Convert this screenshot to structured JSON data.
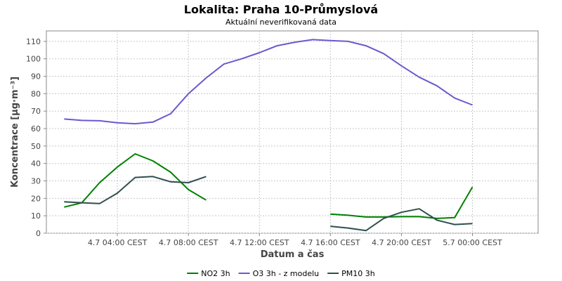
{
  "chart_data": {
    "type": "line",
    "title": "Lokalita: Praha 10-Průmyslová",
    "subtitle": "Aktuální neverifikovaná data",
    "xlabel": "Datum a čas",
    "ylabel": "Koncentrace [µg·m⁻³]",
    "ylim": [
      0,
      116
    ],
    "yticks": [
      0,
      10,
      20,
      30,
      40,
      50,
      60,
      70,
      80,
      90,
      100,
      110
    ],
    "xlim": [
      -1,
      26.7
    ],
    "xticks": [
      {
        "x": 3,
        "label": "4.7 04:00 CEST"
      },
      {
        "x": 7,
        "label": "4.7 08:00 CEST"
      },
      {
        "x": 11,
        "label": "4.7 12:00 CEST"
      },
      {
        "x": 15,
        "label": "4.7 16:00 CEST"
      },
      {
        "x": 19,
        "label": "4.7 20:00 CEST"
      },
      {
        "x": 23,
        "label": "5.7 00:00 CEST"
      }
    ],
    "grid": true,
    "legend_position": "bottom",
    "series": [
      {
        "name": "NO2 3h",
        "color": "#008000",
        "points": [
          [
            0,
            15
          ],
          [
            1,
            17.5
          ],
          [
            2,
            29
          ],
          [
            3,
            38
          ],
          [
            4,
            45.5
          ],
          [
            5,
            41.5
          ],
          [
            6,
            35
          ],
          [
            7,
            25
          ],
          [
            8,
            19
          ],
          [
            15,
            11
          ],
          [
            16,
            10.3
          ],
          [
            17,
            9.3
          ],
          [
            18,
            9.3
          ],
          [
            19,
            9.5
          ],
          [
            20,
            9.5
          ],
          [
            21,
            8.5
          ],
          [
            22,
            9
          ],
          [
            23,
            26.5
          ]
        ]
      },
      {
        "name": "O3 3h - z modelu",
        "color": "#6a5acd",
        "points": [
          [
            0,
            65.5
          ],
          [
            1,
            64.7
          ],
          [
            2,
            64.5
          ],
          [
            3,
            63.3
          ],
          [
            4,
            62.8
          ],
          [
            5,
            63.7
          ],
          [
            6,
            68.5
          ],
          [
            7,
            80
          ],
          [
            8,
            89
          ],
          [
            9,
            97
          ],
          [
            10,
            100
          ],
          [
            11,
            103.5
          ],
          [
            12,
            107.5
          ],
          [
            13,
            109.5
          ],
          [
            14,
            111
          ],
          [
            15,
            110.5
          ],
          [
            16,
            110
          ],
          [
            17,
            107.5
          ],
          [
            18,
            103
          ],
          [
            19,
            96
          ],
          [
            20,
            89.5
          ],
          [
            21,
            84.5
          ],
          [
            22,
            77.5
          ],
          [
            23,
            73.5
          ]
        ]
      },
      {
        "name": "PM10 3h",
        "color": "#2f4f4f",
        "points": [
          [
            0,
            18
          ],
          [
            1,
            17.5
          ],
          [
            2,
            17
          ],
          [
            3,
            23
          ],
          [
            4,
            32
          ],
          [
            5,
            32.5
          ],
          [
            6,
            29.5
          ],
          [
            7,
            29
          ],
          [
            8,
            32.5
          ],
          [
            15,
            4
          ],
          [
            16,
            3
          ],
          [
            17,
            1.5
          ],
          [
            18,
            8.5
          ],
          [
            19,
            12
          ],
          [
            20,
            14
          ],
          [
            21,
            7.5
          ],
          [
            22,
            5
          ],
          [
            23,
            5.5
          ]
        ]
      }
    ]
  }
}
